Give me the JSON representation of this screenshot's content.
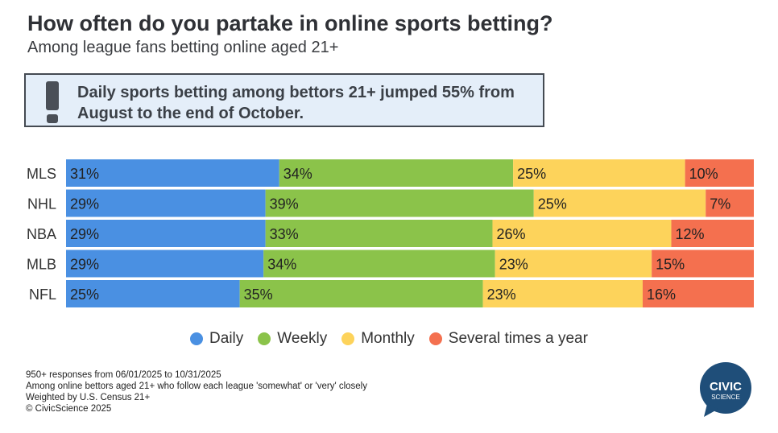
{
  "title": "How often do you partake in online sports betting?",
  "subtitle": "Among league fans betting online aged 21+",
  "callout": {
    "icon": "exclamation-icon",
    "text": "Daily sports betting among bettors 21+ jumped 55% from August to the end of October."
  },
  "chart_data": {
    "type": "bar",
    "orientation": "horizontal",
    "stacked": true,
    "percent": true,
    "categories": [
      "MLS",
      "NHL",
      "NBA",
      "MLB",
      "NFL"
    ],
    "series": [
      {
        "name": "Daily",
        "color": "#4a90e2",
        "values": [
          31,
          29,
          29,
          29,
          25
        ]
      },
      {
        "name": "Weekly",
        "color": "#8bc34a",
        "values": [
          34,
          39,
          33,
          34,
          35
        ]
      },
      {
        "name": "Monthly",
        "color": "#fdd35b",
        "values": [
          25,
          25,
          26,
          23,
          23
        ]
      },
      {
        "name": "Several times a year",
        "color": "#f4704f",
        "values": [
          10,
          7,
          12,
          15,
          16
        ]
      }
    ],
    "label_suffix": "%",
    "legend_position": "bottom"
  },
  "footnotes": [
    "950+ responses from 06/01/2025 to 10/31/2025",
    "Among online bettors aged 21+ who follow each league 'somewhat' or 'very' closely",
    "Weighted by U.S. Census 21+",
    "© CivicScience 2025"
  ],
  "logo": {
    "line1": "CIVIC",
    "line2": "SCIENCE",
    "color": "#1f4e79"
  }
}
